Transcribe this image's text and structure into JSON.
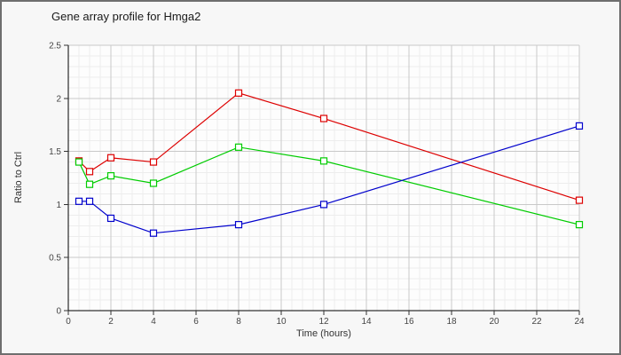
{
  "header": {
    "title": "Gene array profile for Hmga2"
  },
  "chart_data": {
    "type": "line",
    "title": "Gene array profile for Hmga2",
    "xlabel": "Time (hours)",
    "ylabel": "Ratio to Ctrl",
    "x": [
      0.5,
      1,
      2,
      4,
      8,
      12,
      24
    ],
    "series": [
      {
        "name": "red",
        "color": "#dd0000",
        "values": [
          1.41,
          1.31,
          1.44,
          1.4,
          2.05,
          1.81,
          1.04
        ]
      },
      {
        "name": "green",
        "color": "#00cc00",
        "values": [
          1.4,
          1.19,
          1.27,
          1.2,
          1.54,
          1.41,
          0.81
        ]
      },
      {
        "name": "blue",
        "color": "#0000cc",
        "values": [
          1.03,
          1.03,
          0.87,
          0.73,
          0.81,
          1.0,
          1.74
        ]
      }
    ],
    "xlim": [
      0,
      24
    ],
    "ylim": [
      0,
      2.5
    ],
    "x_tick_values": [
      0,
      2,
      4,
      6,
      8,
      10,
      12,
      14,
      16,
      18,
      20,
      22,
      24
    ],
    "x_tick_labels": [
      "0",
      "2",
      "4",
      "6",
      "8",
      "10",
      "12",
      "14",
      "16",
      "18",
      "20",
      "22",
      "24"
    ],
    "y_tick_values": [
      0,
      0.5,
      1,
      1.5,
      2,
      2.5
    ],
    "y_tick_labels": [
      "0",
      "0.5",
      "1",
      "1.5",
      "2",
      "2.5"
    ],
    "x_minor_step": 0.5,
    "y_minor_step": 0.1,
    "grid": true,
    "legend": "none",
    "marker": "open-square",
    "colors": {
      "major_grid": "#c9c9c9",
      "minor_grid": "#ededed",
      "axis": "#000000",
      "tick": "#333333",
      "tick_label": "#444444",
      "plot_bg": "#fdfdfd",
      "page_bg": "#f7f7f7",
      "frame_border": "#6f6f6f"
    }
  }
}
